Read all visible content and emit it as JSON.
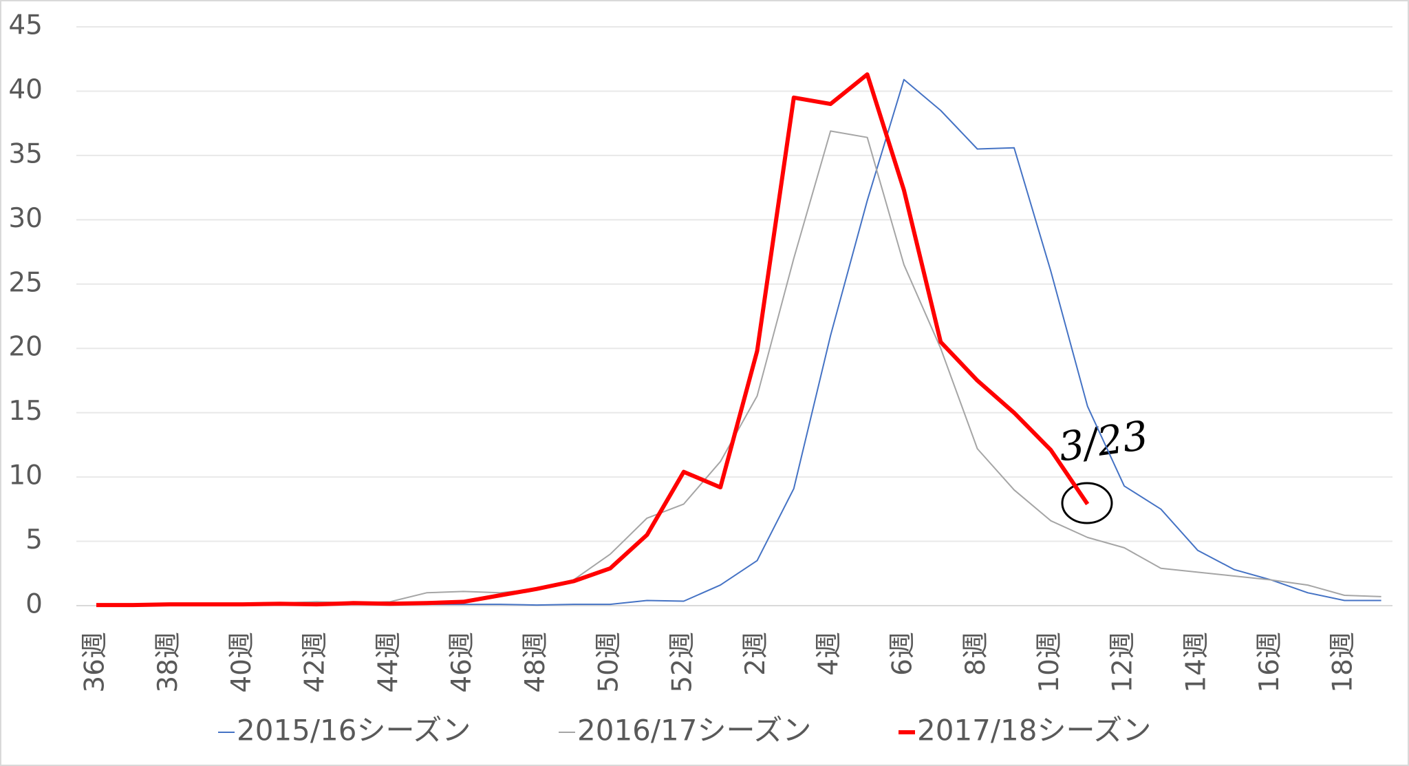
{
  "chart_data": {
    "type": "line",
    "categories": [
      "36週",
      null,
      "38週",
      null,
      "40週",
      null,
      "42週",
      null,
      "44週",
      null,
      "46週",
      null,
      "48週",
      null,
      "50週",
      null,
      "52週",
      null,
      "2週",
      null,
      "4週",
      null,
      "6週",
      null,
      "8週",
      null,
      "10週",
      null,
      "12週",
      null,
      "14週",
      null,
      "16週",
      null,
      "18週",
      null
    ],
    "series": [
      {
        "name": "2015/16シーズン",
        "color": "#4472c4",
        "width": 2,
        "values": [
          0.1,
          0.1,
          0.1,
          0.1,
          0.1,
          0.1,
          0.1,
          0.1,
          0.1,
          0.1,
          0.1,
          0.1,
          0.05,
          0.1,
          0.1,
          0.4,
          0.35,
          1.6,
          3.5,
          9.1,
          21,
          31.5,
          40.9,
          38.5,
          35.5,
          35.6,
          26,
          15.5,
          9.3,
          7.5,
          4.3,
          2.8,
          2.0,
          1.0,
          0.4,
          0.4
        ]
      },
      {
        "name": "2016/17シーズン",
        "color": "#a5a5a5",
        "width": 2,
        "values": [
          0.1,
          0.1,
          0.1,
          0.1,
          0.15,
          0.2,
          0.3,
          0.2,
          0.3,
          1.0,
          1.1,
          1.0,
          1.3,
          2.0,
          4.0,
          6.8,
          7.9,
          11.2,
          16.3,
          27,
          36.9,
          36.4,
          26.5,
          20,
          12.2,
          9.0,
          6.6,
          5.3,
          4.5,
          2.9,
          2.6,
          2.3,
          2.0,
          1.6,
          0.8,
          0.7
        ]
      },
      {
        "name": "2017/18シーズン",
        "color": "#ff0000",
        "width": 6,
        "values": [
          0.05,
          0.05,
          0.1,
          0.1,
          0.1,
          0.15,
          0.1,
          0.2,
          0.15,
          0.2,
          0.3,
          0.8,
          1.3,
          1.9,
          2.9,
          5.5,
          10.4,
          9.2,
          19.8,
          39.5,
          39.0,
          41.3,
          32.3,
          20.5,
          17.5,
          15.0,
          12.1,
          7.9,
          null,
          null,
          null,
          null,
          null,
          null,
          null,
          null
        ]
      }
    ],
    "annotation": "3/23",
    "ylim": [
      0,
      45
    ],
    "yticks": [
      0,
      5,
      10,
      15,
      20,
      25,
      30,
      35,
      40,
      45
    ],
    "grid": true,
    "legend": "bottom"
  }
}
